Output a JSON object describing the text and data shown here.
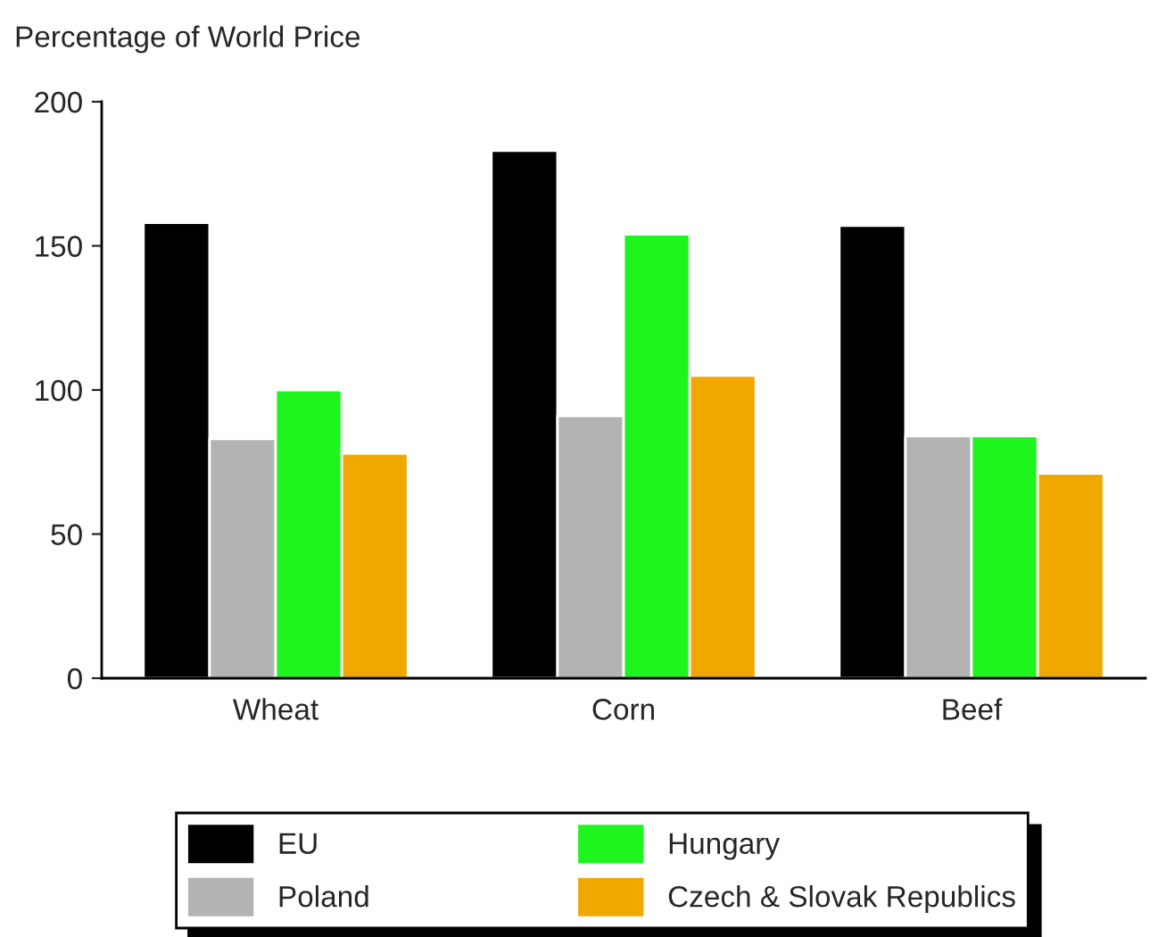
{
  "chart_data": {
    "type": "bar",
    "ylabel": "Percentage of World Price",
    "categories": [
      "Wheat",
      "Corn",
      "Beef"
    ],
    "series": [
      {
        "name": "EU",
        "color": "#000000",
        "values": [
          158,
          183,
          157
        ]
      },
      {
        "name": "Poland",
        "color": "#b3b3b3",
        "values": [
          83,
          91,
          84
        ]
      },
      {
        "name": "Hungary",
        "color": "#1ef51e",
        "values": [
          100,
          154,
          84
        ]
      },
      {
        "name": "Czech & Slovak Republics",
        "color": "#f0a800",
        "values": [
          78,
          105,
          71
        ]
      }
    ],
    "ylim": [
      0,
      200
    ],
    "yticks": [
      0,
      50,
      100,
      150,
      200
    ],
    "grid": false,
    "legend": "bottom"
  }
}
